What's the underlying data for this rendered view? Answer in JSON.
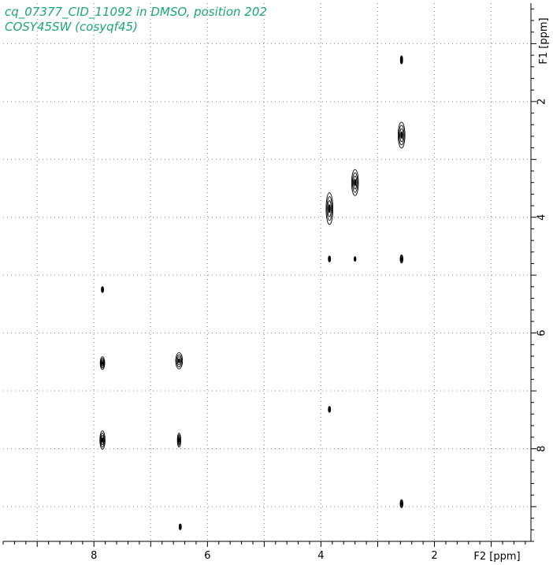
{
  "header": {
    "line1": "cq_07377_CID_11092 in DMSO, position 202",
    "line2": "COSY45SW (cosyqf45)"
  },
  "colors": {
    "title": "#1aa870",
    "contour": "#000000",
    "grid": "#8a8a8a"
  },
  "chart_data": {
    "type": "scatter",
    "subtype": "2D NMR COSY contour plot",
    "xlabel": "F2 [ppm]",
    "ylabel": "F1 [ppm]",
    "xlim": [
      9.6,
      0.3
    ],
    "ylim": [
      0.3,
      9.6
    ],
    "x_reversed": true,
    "y_reversed": true,
    "x_ticks": [
      8,
      6,
      4,
      2
    ],
    "y_ticks": [
      2,
      4,
      6,
      8
    ],
    "grid": true,
    "peaks": [
      {
        "x": 2.58,
        "y": 1.28,
        "w": 0.04,
        "h": 0.14
      },
      {
        "x": 2.58,
        "y": 2.58,
        "w": 0.12,
        "h": 0.45
      },
      {
        "x": 3.4,
        "y": 3.4,
        "w": 0.12,
        "h": 0.45
      },
      {
        "x": 3.85,
        "y": 3.85,
        "w": 0.12,
        "h": 0.55
      },
      {
        "x": 3.85,
        "y": 4.72,
        "w": 0.04,
        "h": 0.1
      },
      {
        "x": 3.4,
        "y": 4.72,
        "w": 0.03,
        "h": 0.08
      },
      {
        "x": 2.58,
        "y": 4.72,
        "w": 0.05,
        "h": 0.14
      },
      {
        "x": 7.85,
        "y": 5.25,
        "w": 0.04,
        "h": 0.1
      },
      {
        "x": 7.85,
        "y": 6.52,
        "w": 0.08,
        "h": 0.22
      },
      {
        "x": 6.5,
        "y": 6.48,
        "w": 0.12,
        "h": 0.28
      },
      {
        "x": 3.85,
        "y": 7.32,
        "w": 0.04,
        "h": 0.1
      },
      {
        "x": 7.85,
        "y": 7.85,
        "w": 0.09,
        "h": 0.32
      },
      {
        "x": 6.5,
        "y": 7.85,
        "w": 0.06,
        "h": 0.24
      },
      {
        "x": 2.58,
        "y": 8.95,
        "w": 0.05,
        "h": 0.14
      },
      {
        "x": 6.48,
        "y": 9.35,
        "w": 0.04,
        "h": 0.1
      }
    ]
  }
}
